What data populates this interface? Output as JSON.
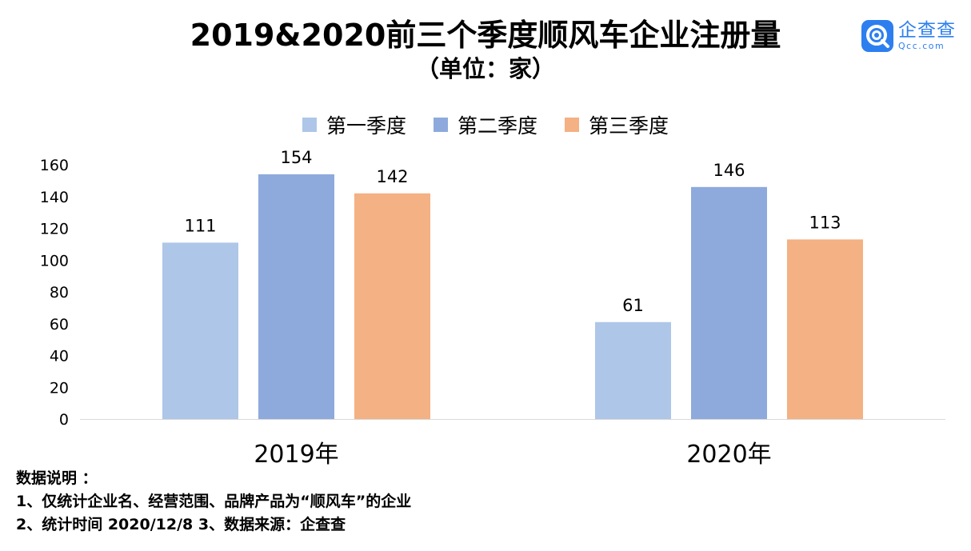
{
  "chart_data": {
    "type": "bar",
    "title": "2019&2020前三个季度顺风车企业注册量",
    "subtitle": "（单位：家）",
    "categories": [
      "2019年",
      "2020年"
    ],
    "series": [
      {
        "name": "第一季度",
        "values": [
          111,
          61
        ],
        "color": "#aec6e8"
      },
      {
        "name": "第二季度",
        "values": [
          154,
          146
        ],
        "color": "#8eaadc"
      },
      {
        "name": "第三季度",
        "values": [
          142,
          113
        ],
        "color": "#f4b183"
      }
    ],
    "ylim": [
      0,
      160
    ],
    "yticks": [
      "0",
      "20",
      "40",
      "60",
      "80",
      "100",
      "120",
      "140",
      "160"
    ],
    "legend_position": "top-center",
    "grid": false
  },
  "logo": {
    "cn": "企查查",
    "en": "Qcc.com",
    "color": "#2d7ff0"
  },
  "notes": {
    "heading": "数据说明 ：",
    "line1": "1、仅统计企业名、经营范围、品牌产品为“顺风车”的企业",
    "line2": "2、统计时间 2020/12/8    3、数据来源：企查查"
  }
}
